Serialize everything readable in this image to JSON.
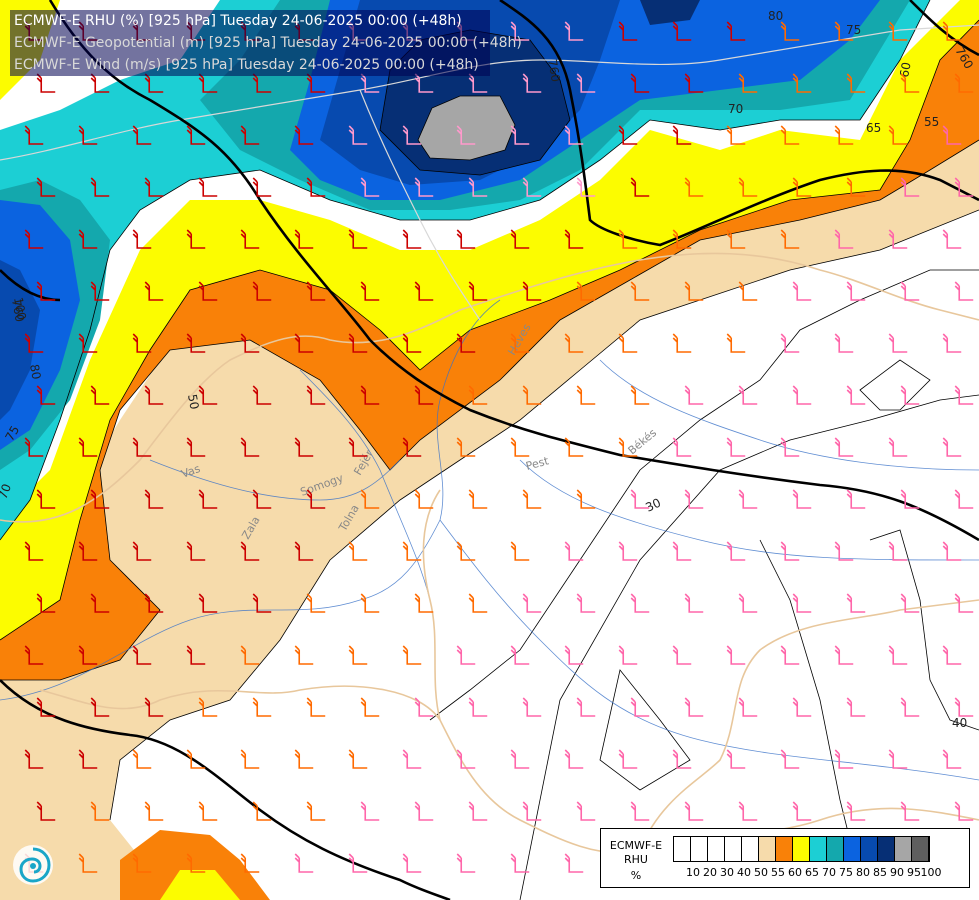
{
  "header": {
    "line1": "ECMWF-E RHU (%) [925 hPa] Tuesday 24-06-2025 00:00 (+48h)",
    "line2": "ECMWF-E Geopotential (m) [925 hPa] Tuesday 24-06-2025 00:00 (+48h)",
    "line3": "ECMWF-E Wind (m/s) [925 hPa] Tuesday 24-06-2025 00:00 (+48h)"
  },
  "legend": {
    "title1": "ECMWF-E",
    "title2": "RHU",
    "unit": "%",
    "tick_labels": [
      "10",
      "20",
      "30",
      "40",
      "50",
      "55",
      "60",
      "65",
      "70",
      "75",
      "80",
      "85",
      "90",
      "95",
      "100"
    ],
    "colors": [
      "#ffffff",
      "#ffffff",
      "#ffffff",
      "#ffffff",
      "#ffffff",
      "#f6dbab",
      "#f98108",
      "#fcfc00",
      "#1ccfd4",
      "#14a8ad",
      "#0b63e0",
      "#074aaf",
      "#062f75",
      "#a6a6a6",
      "#5e5e5e"
    ]
  },
  "geopotential_labels": [
    "760",
    "760",
    "760",
    "760",
    "760",
    "760"
  ],
  "contour_labels": [
    "80",
    "75",
    "70",
    "65",
    "60",
    "55",
    "40",
    "50",
    "30",
    "40",
    "70",
    "80",
    "75",
    "70",
    "100",
    "80",
    "75",
    "70"
  ],
  "region_labels": [
    "Vas",
    "Zala",
    "Somogy",
    "Tolna",
    "Fejér",
    "Pest",
    "Heves",
    "Békés"
  ],
  "colors": {
    "rhu_55": "#f6dbab",
    "rhu_60": "#f98108",
    "rhu_65": "#fcfc00",
    "rhu_70": "#1ccfd4",
    "rhu_75": "#14a8ad",
    "rhu_80": "#0b63e0",
    "rhu_85": "#074aaf",
    "rhu_90": "#062f75",
    "rhu_95": "#a6a6a6"
  }
}
